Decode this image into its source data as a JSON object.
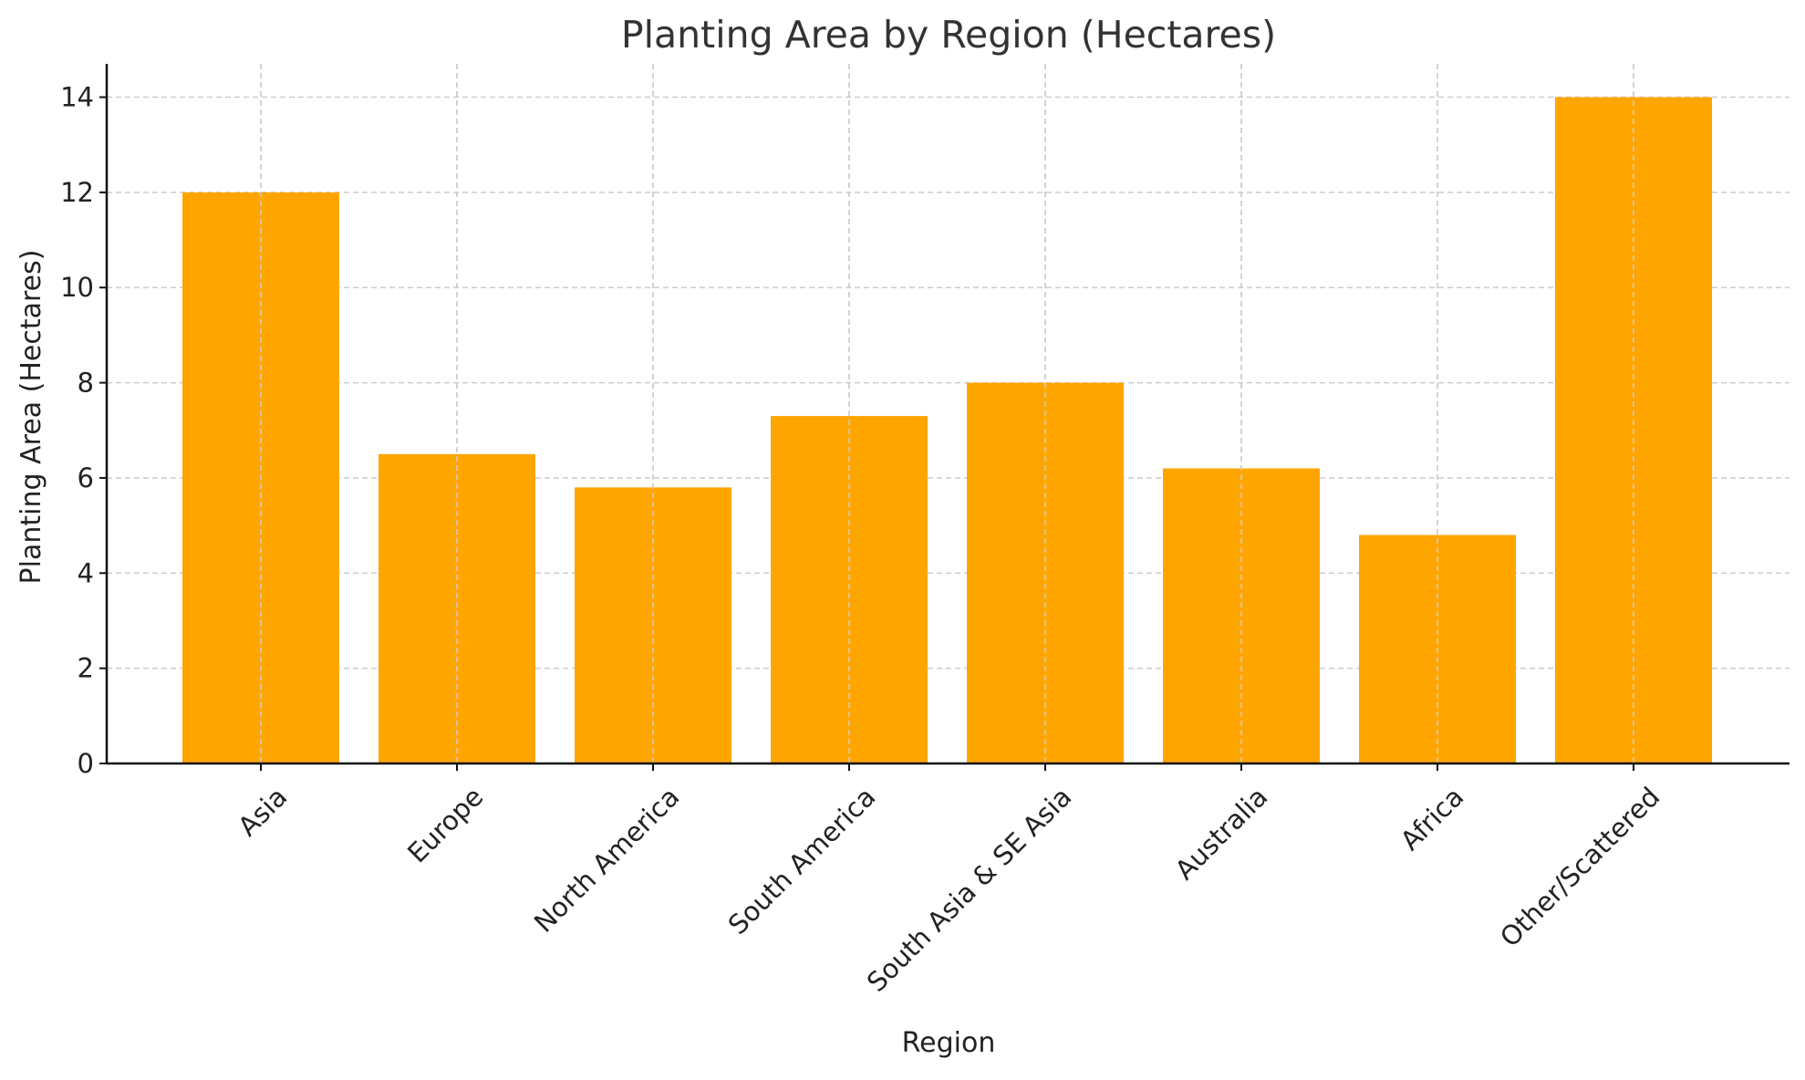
{
  "chart_data": {
    "type": "bar",
    "title": "Planting Area by Region (Hectares)",
    "xlabel": "Region",
    "ylabel": "Planting Area (Hectares)",
    "categories": [
      "Asia",
      "Europe",
      "North America",
      "South America",
      "South Asia & SE Asia",
      "Australia",
      "Africa",
      "Other/Scattered"
    ],
    "values": [
      12,
      6.5,
      5.8,
      7.3,
      8,
      6.2,
      4.8,
      14
    ],
    "ylim": [
      0,
      14.7
    ],
    "yticks": [
      0,
      2,
      4,
      6,
      8,
      10,
      12,
      14
    ],
    "bar_color": "#FFA500",
    "grid": true,
    "x_tick_rotation": -45
  }
}
